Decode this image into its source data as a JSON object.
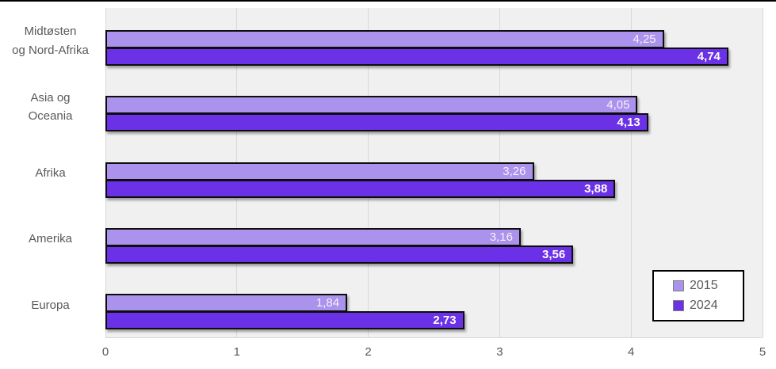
{
  "chart_data": {
    "type": "bar",
    "orientation": "horizontal",
    "title": "",
    "xlabel": "",
    "ylabel": "",
    "xlim": [
      0,
      5
    ],
    "x_ticks": [
      "0",
      "1",
      "2",
      "3",
      "4",
      "5"
    ],
    "grid": "vertical",
    "categories": [
      "Midtøsten og Nord-Afrika",
      "Asia og Oceania",
      "Afrika",
      "Amerika",
      "Europa"
    ],
    "categories_display": [
      [
        "Midtøsten",
        "og Nord-Afrika"
      ],
      [
        "Asia og",
        "Oceania"
      ],
      [
        "Afrika"
      ],
      [
        "Amerika"
      ],
      [
        "Europa"
      ]
    ],
    "series": [
      {
        "name": "2015",
        "color": "#ab92ec",
        "values": [
          4.25,
          4.05,
          3.26,
          3.16,
          1.84
        ],
        "labels": [
          "4,25",
          "4,05",
          "3,26",
          "3,16",
          "1,84"
        ],
        "label_color": "rgba(255,255,255,0.88)",
        "label_weight": "normal"
      },
      {
        "name": "2024",
        "color": "#6b31e6",
        "values": [
          4.74,
          4.13,
          3.88,
          3.56,
          2.73
        ],
        "labels": [
          "4,74",
          "4,13",
          "3,88",
          "3,56",
          "2,73"
        ],
        "label_color": "#ffffff",
        "label_weight": "bold"
      }
    ],
    "legend": {
      "position": "bottom-right",
      "entries": [
        "2015",
        "2024"
      ]
    },
    "colors": {
      "plot_background": "#f0f0f0",
      "gridline": "#d9d9d9",
      "axis_text": "#595959",
      "bar_border": "#0d0d0d",
      "chart_border": "#000000",
      "legend_background": "#ffffff"
    }
  }
}
